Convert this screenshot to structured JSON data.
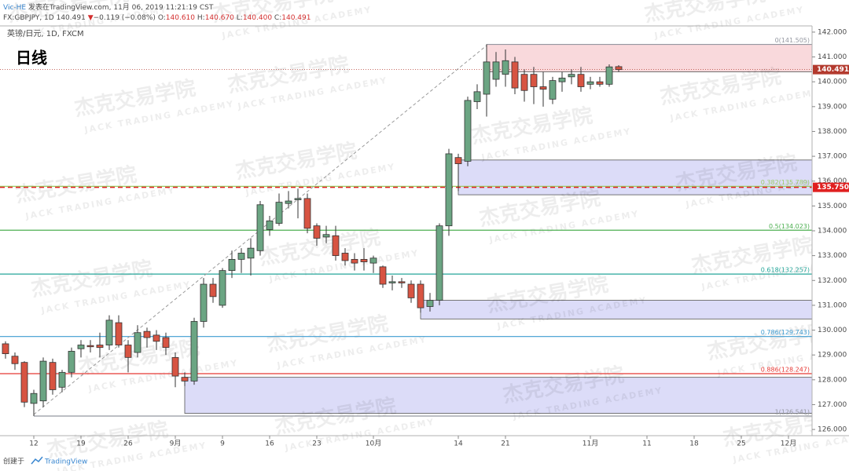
{
  "header": {
    "author": "Vic-HE",
    "published": "发表在TradingView.com, 11月 06, 2019 11:21:19 CST",
    "symbol": "FX:GBPJPY, 1D",
    "last": "140.491",
    "arrow": "▼",
    "change": "−0.119 (−0.08%)",
    "ohlc": [
      {
        "label": "O:",
        "value": "140.610"
      },
      {
        "label": "H:",
        "value": "140.670"
      },
      {
        "label": "L:",
        "value": "140.400"
      },
      {
        "label": "C:",
        "value": "140.491"
      }
    ]
  },
  "legend": "英镑/日元, 1D, FXCM",
  "annotation": "日线",
  "watermark": {
    "name": "杰克交易学院",
    "subtitle": "JACK TRADING ACADEMY"
  },
  "footer": {
    "prefix": "创建于",
    "brand": "TradingView"
  },
  "chart_data": {
    "type": "candlestick",
    "categories": [
      null,
      null,
      null,
      "12",
      null,
      null,
      null,
      null,
      "19",
      null,
      null,
      null,
      null,
      "26",
      null,
      null,
      null,
      null,
      "9月",
      null,
      null,
      null,
      null,
      "9",
      null,
      null,
      null,
      null,
      "16",
      null,
      null,
      null,
      null,
      "23",
      null,
      null,
      null,
      null,
      null,
      "10月",
      null,
      null,
      null,
      null,
      null,
      null,
      null,
      null,
      "14",
      null,
      null,
      null,
      null,
      "21",
      null,
      null,
      null,
      null,
      null,
      null,
      null,
      null,
      "11月",
      null,
      null,
      null,
      null,
      null,
      "11",
      null,
      null,
      null,
      null,
      "18",
      null,
      null,
      null,
      null,
      "25",
      null,
      null,
      null,
      null,
      "12月"
    ],
    "open": [
      129.45,
      128.95,
      128.7,
      127.05,
      127.15,
      128.7,
      127.7,
      128.3,
      129.25,
      129.38,
      129.4,
      129.4,
      130.3,
      129.4,
      129.1,
      129.95,
      129.8,
      129.7,
      128.9,
      128.1,
      127.95,
      130.35,
      131.85,
      131.0,
      132.4,
      132.85,
      132.9,
      133.2,
      134.05,
      134.3,
      135.1,
      135.25,
      135.3,
      134.2,
      133.75,
      133.8,
      133.1,
      132.85,
      132.85,
      132.7,
      132.55,
      131.9,
      131.95,
      131.85,
      131.85,
      130.95,
      131.2,
      134.2,
      136.95,
      136.8,
      139.2,
      139.5,
      140.1,
      140.3,
      140.8,
      140.3,
      140.3,
      139.8,
      139.3,
      140.0,
      140.2,
      140.3,
      139.9,
      140.0,
      139.9,
      140.61,
      null,
      null,
      null,
      null,
      null,
      null,
      null,
      null,
      null,
      null,
      null,
      null,
      null,
      null,
      null,
      null,
      null,
      null
    ],
    "high": [
      129.55,
      129.1,
      128.75,
      127.6,
      128.9,
      128.85,
      128.4,
      129.3,
      129.6,
      129.6,
      129.9,
      130.6,
      130.6,
      129.6,
      130.2,
      130.1,
      130.0,
      129.9,
      129.1,
      128.3,
      130.5,
      132.1,
      132.1,
      132.5,
      133.2,
      133.3,
      133.7,
      135.2,
      134.6,
      135.5,
      135.6,
      135.7,
      135.5,
      134.3,
      134.2,
      134.2,
      133.3,
      133.1,
      133.3,
      133.0,
      132.6,
      132.2,
      132.1,
      132.0,
      132.0,
      131.5,
      134.3,
      137.3,
      137.1,
      139.4,
      139.9,
      141.505,
      141.2,
      141.3,
      141.0,
      140.5,
      140.6,
      140.4,
      140.2,
      140.4,
      140.5,
      140.6,
      140.2,
      140.2,
      140.7,
      140.67,
      null,
      null,
      null,
      null,
      null,
      null,
      null,
      null,
      null,
      null,
      null,
      null,
      null,
      null,
      null,
      null,
      null,
      null
    ],
    "low": [
      128.85,
      128.4,
      126.9,
      126.541,
      126.9,
      127.4,
      127.5,
      128.1,
      128.9,
      129.1,
      128.9,
      129.2,
      129.3,
      128.3,
      128.9,
      129.3,
      129.2,
      129.0,
      127.7,
      127.75,
      127.8,
      130.1,
      131.1,
      130.9,
      132.1,
      132.3,
      132.2,
      133.0,
      133.8,
      134.2,
      134.9,
      134.5,
      133.9,
      133.4,
      133.5,
      132.8,
      132.6,
      132.4,
      132.4,
      132.3,
      131.7,
      131.6,
      131.7,
      131.1,
      130.7,
      130.75,
      131.0,
      133.8,
      135.6,
      136.6,
      138.9,
      138.6,
      139.8,
      139.8,
      139.5,
      139.2,
      139.1,
      139.0,
      139.1,
      139.6,
      139.9,
      139.6,
      139.7,
      139.8,
      139.8,
      140.4,
      null,
      null,
      null,
      null,
      null,
      null,
      null,
      null,
      null,
      null,
      null,
      null,
      null,
      null,
      null,
      null,
      null,
      null
    ],
    "close": [
      129.05,
      128.65,
      127.1,
      127.45,
      128.75,
      127.6,
      128.3,
      129.15,
      129.4,
      129.33,
      129.3,
      130.4,
      129.4,
      128.9,
      129.9,
      129.7,
      129.55,
      129.3,
      128.15,
      127.95,
      130.35,
      131.85,
      131.35,
      132.4,
      132.85,
      133.1,
      133.3,
      135.05,
      134.4,
      135.15,
      135.2,
      135.3,
      134.1,
      133.7,
      133.85,
      133.0,
      132.8,
      132.7,
      132.75,
      132.9,
      131.85,
      131.95,
      131.9,
      131.3,
      130.9,
      131.2,
      134.2,
      137.1,
      136.7,
      139.25,
      139.6,
      140.8,
      140.8,
      140.85,
      139.75,
      139.65,
      139.8,
      139.7,
      140.05,
      140.15,
      140.3,
      139.8,
      140.0,
      139.9,
      140.6,
      140.491,
      null,
      null,
      null,
      null,
      null,
      null,
      null,
      null,
      null,
      null,
      null,
      null,
      null,
      null,
      null,
      null,
      null,
      null
    ],
    "up_color": "#6ba583",
    "down_color": "#d75442",
    "ylim": [
      125.75,
      142.25
    ],
    "yticks": [
      {
        "value": 126,
        "label": "126.000"
      },
      {
        "value": 127,
        "label": "127.000"
      },
      {
        "value": 128,
        "label": "128.000"
      },
      {
        "value": 129,
        "label": "129.000"
      },
      {
        "value": 130,
        "label": "130.000"
      },
      {
        "value": 131,
        "label": "131.000"
      },
      {
        "value": 132,
        "label": "132.000"
      },
      {
        "value": 133,
        "label": "133.000"
      },
      {
        "value": 134,
        "label": "134.000"
      },
      {
        "value": 135,
        "label": "135.000"
      },
      {
        "value": 136,
        "label": "136.000"
      },
      {
        "value": 137,
        "label": "137.000"
      },
      {
        "value": 138,
        "label": "138.000"
      },
      {
        "value": 139,
        "label": "139.000"
      },
      {
        "value": 140,
        "label": "140.000"
      },
      {
        "value": 141,
        "label": "141.000"
      },
      {
        "value": 142,
        "label": "142.000"
      }
    ],
    "fib_levels": [
      {
        "value": 141.505,
        "label": "0(141.505)",
        "color": "#9598a1"
      },
      {
        "value": 135.789,
        "label": "0.382(135.789)",
        "color": "#9ccc65"
      },
      {
        "value": 134.023,
        "label": "0.5(134.023)",
        "color": "#4caf50"
      },
      {
        "value": 132.257,
        "label": "0.618(132.257)",
        "color": "#26a69a"
      },
      {
        "value": 129.743,
        "label": "0.786(129.743)",
        "color": "#3d9bd1"
      },
      {
        "value": 128.247,
        "label": "0.886(128.247)",
        "color": "#e53935"
      },
      {
        "value": 126.541,
        "label": "1(126.541)",
        "color": "#9598a1"
      }
    ],
    "zones": [
      {
        "high": 141.505,
        "low": 140.4,
        "color": "#f9d9dc"
      },
      {
        "high": 136.85,
        "low": 135.45,
        "color": "#dcdcf8"
      },
      {
        "high": 131.2,
        "low": 130.45,
        "color": "#dcdcf8"
      },
      {
        "high": 128.1,
        "low": 126.65,
        "color": "#dcdcf8"
      }
    ],
    "price_lines": [
      {
        "value": 140.491,
        "label": "140.491",
        "color": "#b33a2e",
        "style": "dotted"
      },
      {
        "value": 135.75,
        "label": "135.750",
        "color": "#e02020",
        "style": "dashed"
      }
    ]
  }
}
